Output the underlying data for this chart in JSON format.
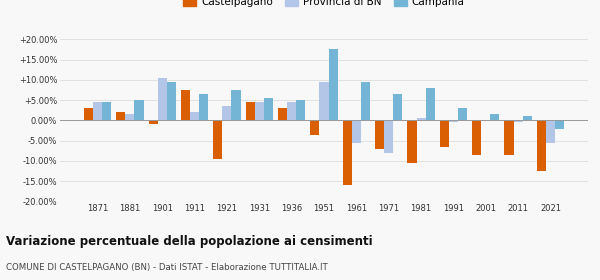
{
  "years": [
    1871,
    1881,
    1901,
    1911,
    1921,
    1931,
    1936,
    1951,
    1961,
    1971,
    1981,
    1991,
    2001,
    2011,
    2021
  ],
  "castelpagano": [
    3.0,
    2.0,
    -0.8,
    7.5,
    -9.5,
    4.5,
    3.0,
    -3.5,
    -16.0,
    -7.0,
    -10.5,
    -6.5,
    -8.5,
    -8.5,
    -12.5
  ],
  "provincia_bn": [
    4.5,
    1.5,
    10.5,
    2.0,
    3.5,
    4.5,
    4.5,
    9.5,
    -5.5,
    -8.0,
    0.5,
    -0.5,
    0.0,
    -0.5,
    -5.5
  ],
  "campania": [
    4.5,
    5.0,
    9.5,
    6.5,
    7.5,
    5.5,
    5.0,
    17.5,
    9.5,
    6.5,
    8.0,
    3.0,
    1.5,
    1.0,
    -2.0
  ],
  "color_castelpagano": "#d95f02",
  "color_provincia": "#b3c6e7",
  "color_campania": "#74b4d4",
  "title": "Variazione percentuale della popolazione ai censimenti",
  "subtitle": "COMUNE DI CASTELPAGANO (BN) - Dati ISTAT - Elaborazione TUTTITALIA.IT",
  "legend_labels": [
    "Castelpagano",
    "Provincia di BN",
    "Campania"
  ],
  "ylim": [
    -20,
    20
  ],
  "yticks": [
    -20,
    -15,
    -10,
    -5,
    0,
    5,
    10,
    15,
    20
  ],
  "ytick_labels": [
    "-20.00%",
    "-15.00%",
    "-10.00%",
    "-5.00%",
    "0.00%",
    "+5.00%",
    "+10.00%",
    "+15.00%",
    "+20.00%"
  ],
  "bar_width": 0.28,
  "background_color": "#f8f8f8",
  "grid_color": "#dddddd"
}
